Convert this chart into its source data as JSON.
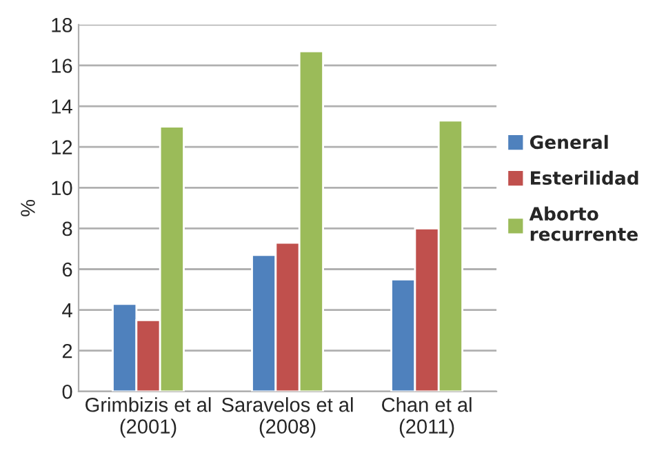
{
  "chart_data": {
    "type": "bar",
    "ylabel": "%",
    "categories": [
      "Grimbizis et al\n(2001)",
      "Saravelos et al\n(2008)",
      "Chan et al\n(2011)"
    ],
    "series": [
      {
        "name": "General",
        "color": "#4f81bd",
        "values": [
          4.3,
          6.7,
          5.5
        ]
      },
      {
        "name": "Esterilidad",
        "color": "#c0504d",
        "values": [
          3.5,
          7.3,
          8.0
        ]
      },
      {
        "name": "Aborto\nrecurrente",
        "color": "#9bbb59",
        "values": [
          13.0,
          16.7,
          13.3
        ]
      }
    ],
    "ylim": [
      0,
      18
    ],
    "yticks": [
      0,
      2,
      4,
      6,
      8,
      10,
      12,
      14,
      16,
      18
    ],
    "grid": "y",
    "legend": "right"
  }
}
